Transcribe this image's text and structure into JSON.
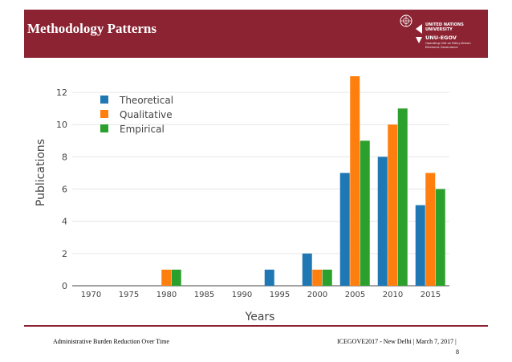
{
  "slide": {
    "title": "Methodology Patterns",
    "logo": {
      "line1": "UNITED NATIONS",
      "line2": "UNIVERSITY",
      "brand": "UNU-EGOV",
      "tagline1": "Operating Unit on Policy-Driven",
      "tagline2": "Electronic Governance"
    },
    "footer_left": "Administrative Burden Reduction Over Time",
    "footer_right": "ICEGOVE2017 - New Delhi | March 7, 2017 |",
    "page_number": "8"
  },
  "chart_data": {
    "type": "bar",
    "title": "",
    "xlabel": "Years",
    "ylabel": "Publications",
    "categories": [
      "1970",
      "1975",
      "1980",
      "1985",
      "1990",
      "1995",
      "2000",
      "2005",
      "2010",
      "2015"
    ],
    "series": [
      {
        "name": "Theoretical",
        "color": "#1f77b4",
        "values": [
          0,
          0,
          0,
          0,
          0,
          1,
          2,
          7,
          8,
          5
        ]
      },
      {
        "name": "Qualitative",
        "color": "#ff7f0e",
        "values": [
          0,
          0,
          1,
          0,
          0,
          0,
          1,
          13,
          10,
          7
        ]
      },
      {
        "name": "Empirical",
        "color": "#2ca02c",
        "values": [
          0,
          0,
          1,
          0,
          0,
          0,
          1,
          9,
          11,
          6
        ]
      }
    ],
    "ylim": [
      0,
      13
    ],
    "yticks": [
      0,
      2,
      4,
      6,
      8,
      10,
      12
    ],
    "grid": true,
    "legend_position": "top-left"
  }
}
